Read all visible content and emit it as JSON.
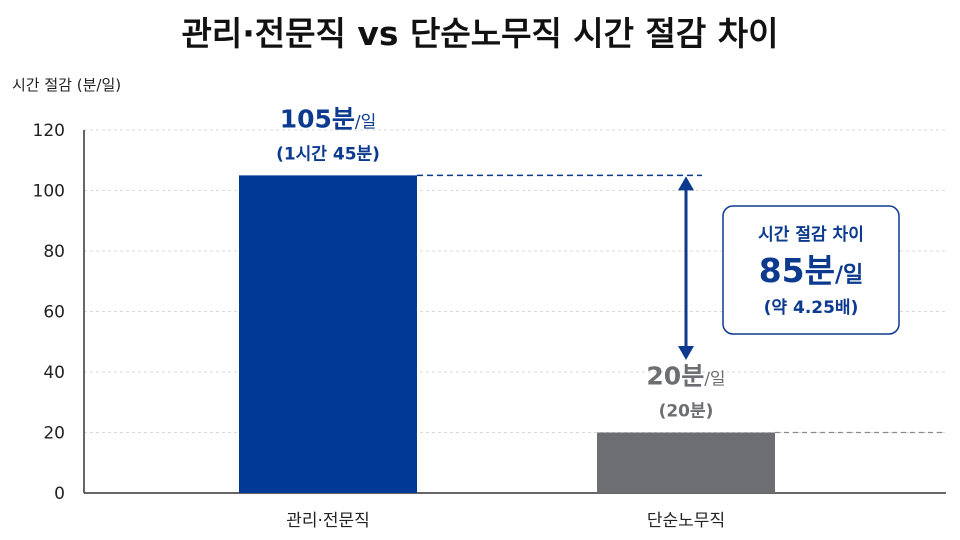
{
  "chart_data": {
    "type": "bar",
    "title": "관리·전문직 vs 단순노무직 시간 절감 차이",
    "ylabel": "시간 절감 (분/일)",
    "ylim": [
      0,
      120
    ],
    "yticks": [
      0,
      20,
      40,
      60,
      80,
      100,
      120
    ],
    "grid": true,
    "categories": [
      "관리·전문직",
      "단순노무직"
    ],
    "values": [
      105,
      20
    ],
    "colors": [
      "#003a96",
      "#6d6e71"
    ],
    "data_labels": [
      {
        "main": "105분",
        "unit": "/일",
        "sub": "(1시간 45분)",
        "color": "#0b3a8f"
      },
      {
        "main": "20분",
        "unit": "/일",
        "sub": "(20분)",
        "color": "#6d6e71"
      }
    ],
    "annotation": {
      "heading": "시간 절감 차이",
      "value": "85분",
      "value_unit": "/일",
      "ratio": "(약 4.25배)",
      "accent": "#0b3a8f"
    }
  }
}
